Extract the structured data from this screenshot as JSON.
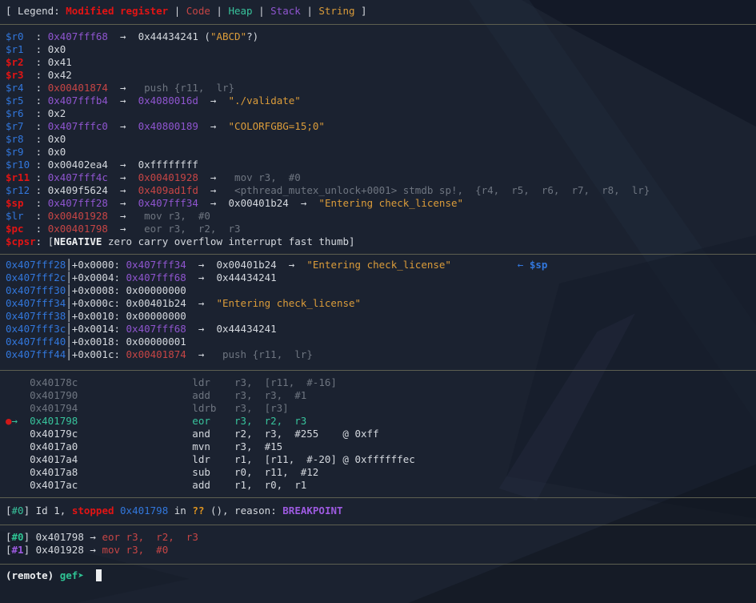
{
  "colors": {
    "background": "#1b2230",
    "text": "#d4d8de",
    "register_blue": "#3277dc",
    "modified_register_red": "#e21414",
    "code_red": "#c64545",
    "heap_green": "#38c39c",
    "stack_purple": "#8f55cf",
    "string_orange": "#db9c3a",
    "dim_gray": "#6e7580",
    "separator": "#5d5f50",
    "cursor": "#eceef0"
  },
  "terminal": {
    "blocks": [
      {
        "kind": "lines",
        "name": "legend",
        "lines": [
          [
            {
              "t": "[ Legend: ",
              "c": "w"
            },
            {
              "t": "Modified register",
              "c": "rb",
              "n": "legend-modified-register"
            },
            {
              "t": " | ",
              "c": "w"
            },
            {
              "t": "Code",
              "c": "r",
              "n": "legend-code"
            },
            {
              "t": " | ",
              "c": "w"
            },
            {
              "t": "Heap",
              "c": "t",
              "n": "legend-heap"
            },
            {
              "t": " | ",
              "c": "w"
            },
            {
              "t": "Stack",
              "c": "p",
              "n": "legend-stack"
            },
            {
              "t": " | ",
              "c": "w"
            },
            {
              "t": "String",
              "c": "o",
              "n": "legend-string"
            },
            {
              "t": " ]",
              "c": "w"
            }
          ]
        ]
      },
      {
        "kind": "sep"
      },
      {
        "kind": "lines",
        "name": "registers",
        "lines": [
          [
            {
              "t": "$r0  ",
              "c": "b",
              "n": "register-name"
            },
            {
              "t": ": ",
              "c": "w"
            },
            {
              "t": "0x407fff68",
              "c": "p"
            },
            {
              "t": "  →  ",
              "c": "w"
            },
            {
              "t": "0x44434241",
              "c": "w"
            },
            {
              "t": " (",
              "c": "w"
            },
            {
              "t": "\"ABCD\"",
              "c": "o"
            },
            {
              "t": "?)",
              "c": "w"
            }
          ],
          [
            {
              "t": "$r1  ",
              "c": "b",
              "n": "register-name"
            },
            {
              "t": ": ",
              "c": "w"
            },
            {
              "t": "0x0",
              "c": "w"
            }
          ],
          [
            {
              "t": "$r2  ",
              "c": "rb",
              "n": "register-name"
            },
            {
              "t": ": ",
              "c": "w"
            },
            {
              "t": "0x41",
              "c": "w"
            }
          ],
          [
            {
              "t": "$r3  ",
              "c": "rb",
              "n": "register-name"
            },
            {
              "t": ": ",
              "c": "w"
            },
            {
              "t": "0x42",
              "c": "w"
            }
          ],
          [
            {
              "t": "$r4  ",
              "c": "b",
              "n": "register-name"
            },
            {
              "t": ": ",
              "c": "w"
            },
            {
              "t": "0x00401874",
              "c": "r"
            },
            {
              "t": "  →  ",
              "c": "w"
            },
            {
              "t": " push {r11,  lr}",
              "c": "g"
            }
          ],
          [
            {
              "t": "$r5  ",
              "c": "b",
              "n": "register-name"
            },
            {
              "t": ": ",
              "c": "w"
            },
            {
              "t": "0x407fffb4",
              "c": "p"
            },
            {
              "t": "  →  ",
              "c": "w"
            },
            {
              "t": "0x4080016d",
              "c": "p"
            },
            {
              "t": "  →  ",
              "c": "w"
            },
            {
              "t": "\"./validate\"",
              "c": "o"
            }
          ],
          [
            {
              "t": "$r6  ",
              "c": "b",
              "n": "register-name"
            },
            {
              "t": ": ",
              "c": "w"
            },
            {
              "t": "0x2",
              "c": "w"
            }
          ],
          [
            {
              "t": "$r7  ",
              "c": "b",
              "n": "register-name"
            },
            {
              "t": ": ",
              "c": "w"
            },
            {
              "t": "0x407fffc0",
              "c": "p"
            },
            {
              "t": "  →  ",
              "c": "w"
            },
            {
              "t": "0x40800189",
              "c": "p"
            },
            {
              "t": "  →  ",
              "c": "w"
            },
            {
              "t": "\"COLORFGBG=15;0\"",
              "c": "o"
            }
          ],
          [
            {
              "t": "$r8  ",
              "c": "b",
              "n": "register-name"
            },
            {
              "t": ": ",
              "c": "w"
            },
            {
              "t": "0x0",
              "c": "w"
            }
          ],
          [
            {
              "t": "$r9  ",
              "c": "b",
              "n": "register-name"
            },
            {
              "t": ": ",
              "c": "w"
            },
            {
              "t": "0x0",
              "c": "w"
            }
          ],
          [
            {
              "t": "$r10 ",
              "c": "b",
              "n": "register-name"
            },
            {
              "t": ": ",
              "c": "w"
            },
            {
              "t": "0x00402ea4",
              "c": "w"
            },
            {
              "t": "  →  ",
              "c": "w"
            },
            {
              "t": "0xffffffff",
              "c": "w"
            }
          ],
          [
            {
              "t": "$r11 ",
              "c": "rb",
              "n": "register-name"
            },
            {
              "t": ": ",
              "c": "w"
            },
            {
              "t": "0x407fff4c",
              "c": "p"
            },
            {
              "t": "  →  ",
              "c": "w"
            },
            {
              "t": "0x00401928",
              "c": "r"
            },
            {
              "t": "  →  ",
              "c": "w"
            },
            {
              "t": " mov r3,  #0",
              "c": "g"
            }
          ],
          [
            {
              "t": "$r12 ",
              "c": "b",
              "n": "register-name"
            },
            {
              "t": ": ",
              "c": "w"
            },
            {
              "t": "0x409f5624",
              "c": "w"
            },
            {
              "t": "  →  ",
              "c": "w"
            },
            {
              "t": "0x409ad1fd",
              "c": "r"
            },
            {
              "t": "  →  ",
              "c": "w"
            },
            {
              "t": " <pthread_mutex_unlock+0001> stmdb sp!,  {r4,  r5,  r6,  r7,  r8,  lr}",
              "c": "g"
            }
          ],
          [
            {
              "t": "$sp  ",
              "c": "rb",
              "n": "register-name"
            },
            {
              "t": ": ",
              "c": "w"
            },
            {
              "t": "0x407fff28",
              "c": "p"
            },
            {
              "t": "  →  ",
              "c": "w"
            },
            {
              "t": "0x407fff34",
              "c": "p"
            },
            {
              "t": "  →  ",
              "c": "w"
            },
            {
              "t": "0x00401b24",
              "c": "w"
            },
            {
              "t": "  →  ",
              "c": "w"
            },
            {
              "t": "\"Entering check_license\"",
              "c": "o"
            }
          ],
          [
            {
              "t": "$lr  ",
              "c": "b",
              "n": "register-name"
            },
            {
              "t": ": ",
              "c": "w"
            },
            {
              "t": "0x00401928",
              "c": "r"
            },
            {
              "t": "  →  ",
              "c": "w"
            },
            {
              "t": " mov r3,  #0",
              "c": "g"
            }
          ],
          [
            {
              "t": "$pc  ",
              "c": "rb",
              "n": "register-name"
            },
            {
              "t": ": ",
              "c": "w"
            },
            {
              "t": "0x00401798",
              "c": "r"
            },
            {
              "t": "  →  ",
              "c": "w"
            },
            {
              "t": " eor r3,  r2,  r3",
              "c": "g"
            }
          ],
          [
            {
              "t": "$cpsr",
              "c": "rb",
              "n": "register-name"
            },
            {
              "t": ": ",
              "c": "w"
            },
            {
              "t": "[",
              "c": "w"
            },
            {
              "t": "NEGATIVE",
              "c": "wb",
              "n": "flag-negative-set"
            },
            {
              "t": " zero carry overflow interrupt fast thumb]",
              "c": "w"
            }
          ]
        ]
      },
      {
        "kind": "sep"
      },
      {
        "kind": "lines",
        "name": "stack",
        "lines": [
          [
            {
              "t": "0x407fff28",
              "c": "b",
              "n": "stack-address"
            },
            {
              "t": "│",
              "c": "w"
            },
            {
              "t": "+0x0000: ",
              "c": "w"
            },
            {
              "t": "0x407fff34",
              "c": "p"
            },
            {
              "t": "  →  ",
              "c": "w"
            },
            {
              "t": "0x00401b24",
              "c": "w"
            },
            {
              "t": "  →  ",
              "c": "w"
            },
            {
              "t": "\"Entering check_license\"",
              "c": "o"
            },
            {
              "t": "           ",
              "c": "w"
            },
            {
              "t": "← ",
              "c": "b",
              "n": "sp-pointer-arrow"
            },
            {
              "t": "$sp",
              "c": "bb",
              "n": "sp-pointer-label"
            }
          ],
          [
            {
              "t": "0x407fff2c",
              "c": "b",
              "n": "stack-address"
            },
            {
              "t": "│",
              "c": "w"
            },
            {
              "t": "+0x0004: ",
              "c": "w"
            },
            {
              "t": "0x407fff68",
              "c": "p"
            },
            {
              "t": "  →  ",
              "c": "w"
            },
            {
              "t": "0x44434241",
              "c": "w"
            }
          ],
          [
            {
              "t": "0x407fff30",
              "c": "b",
              "n": "stack-address"
            },
            {
              "t": "│",
              "c": "w"
            },
            {
              "t": "+0x0008: ",
              "c": "w"
            },
            {
              "t": "0x00000000",
              "c": "w"
            }
          ],
          [
            {
              "t": "0x407fff34",
              "c": "b",
              "n": "stack-address"
            },
            {
              "t": "│",
              "c": "w"
            },
            {
              "t": "+0x000c: ",
              "c": "w"
            },
            {
              "t": "0x00401b24",
              "c": "w"
            },
            {
              "t": "  →  ",
              "c": "w"
            },
            {
              "t": "\"Entering check_license\"",
              "c": "o"
            }
          ],
          [
            {
              "t": "0x407fff38",
              "c": "b",
              "n": "stack-address"
            },
            {
              "t": "│",
              "c": "w"
            },
            {
              "t": "+0x0010: ",
              "c": "w"
            },
            {
              "t": "0x00000000",
              "c": "w"
            }
          ],
          [
            {
              "t": "0x407fff3c",
              "c": "b",
              "n": "stack-address"
            },
            {
              "t": "│",
              "c": "w"
            },
            {
              "t": "+0x0014: ",
              "c": "w"
            },
            {
              "t": "0x407fff68",
              "c": "p"
            },
            {
              "t": "  →  ",
              "c": "w"
            },
            {
              "t": "0x44434241",
              "c": "w"
            }
          ],
          [
            {
              "t": "0x407fff40",
              "c": "b",
              "n": "stack-address"
            },
            {
              "t": "│",
              "c": "w"
            },
            {
              "t": "+0x0018: ",
              "c": "w"
            },
            {
              "t": "0x00000001",
              "c": "w"
            }
          ],
          [
            {
              "t": "0x407fff44",
              "c": "b",
              "n": "stack-address"
            },
            {
              "t": "│",
              "c": "w"
            },
            {
              "t": "+0x001c: ",
              "c": "w"
            },
            {
              "t": "0x00401874",
              "c": "r"
            },
            {
              "t": "  →  ",
              "c": "w"
            },
            {
              "t": " push {r11,  lr}",
              "c": "g"
            }
          ]
        ]
      },
      {
        "kind": "sep"
      },
      {
        "kind": "lines",
        "name": "code",
        "lines": [
          [
            {
              "t": "    0x40178c                   ldr    r3,  [r11,  #-16]",
              "c": "g"
            }
          ],
          [
            {
              "t": "    0x401790                   add    r3,  r3,  #1",
              "c": "g"
            }
          ],
          [
            {
              "t": "    0x401794                   ldrb   r3,  [r3]",
              "c": "g"
            }
          ],
          [
            {
              "t": "●",
              "c": "rdot",
              "n": "breakpoint-dot"
            },
            {
              "t": "→  ",
              "c": "t",
              "n": "current-instruction-arrow"
            },
            {
              "t": "0x401798                   eor    r3,  r2,  r3",
              "c": "t",
              "n": "current-instruction"
            }
          ],
          [
            {
              "t": "    0x40179c                   and    r2,  r3,  #255    @ 0xff",
              "c": "w"
            }
          ],
          [
            {
              "t": "    0x4017a0                   mvn    r3,  #15",
              "c": "w"
            }
          ],
          [
            {
              "t": "    0x4017a4                   ldr    r1,  [r11,  #-20] @ 0xffffffec",
              "c": "w"
            }
          ],
          [
            {
              "t": "    0x4017a8                   sub    r0,  r11,  #12",
              "c": "w"
            }
          ],
          [
            {
              "t": "    0x4017ac                   add    r1,  r0,  r1",
              "c": "w"
            }
          ]
        ]
      },
      {
        "kind": "sep"
      },
      {
        "kind": "lines",
        "name": "threads",
        "lines": [
          [
            {
              "t": "[",
              "c": "w"
            },
            {
              "t": "#0",
              "c": "t",
              "n": "thread-id"
            },
            {
              "t": "] Id 1, ",
              "c": "w"
            },
            {
              "t": "stopped",
              "c": "rb",
              "n": "thread-status"
            },
            {
              "t": " ",
              "c": "w"
            },
            {
              "t": "0x401798",
              "c": "b"
            },
            {
              "t": " in ",
              "c": "w"
            },
            {
              "t": "??",
              "c": "ob"
            },
            {
              "t": " (), reason: ",
              "c": "w"
            },
            {
              "t": "BREAKPOINT",
              "c": "pb",
              "n": "stop-reason"
            }
          ]
        ]
      },
      {
        "kind": "sep"
      },
      {
        "kind": "lines",
        "name": "trace",
        "lines": [
          [
            {
              "t": "[",
              "c": "w"
            },
            {
              "t": "#0",
              "c": "tb",
              "n": "frame-id"
            },
            {
              "t": "] ",
              "c": "w"
            },
            {
              "t": "0x401798",
              "c": "w"
            },
            {
              "t": " → ",
              "c": "w"
            },
            {
              "t": "eor r3,  r2,  r3",
              "c": "r"
            }
          ],
          [
            {
              "t": "[",
              "c": "w"
            },
            {
              "t": "#1",
              "c": "pb",
              "n": "frame-id"
            },
            {
              "t": "] ",
              "c": "w"
            },
            {
              "t": "0x401928",
              "c": "w"
            },
            {
              "t": " → ",
              "c": "w"
            },
            {
              "t": "mov r3,  #0",
              "c": "r"
            }
          ]
        ]
      },
      {
        "kind": "sep"
      },
      {
        "kind": "lines",
        "name": "prompt",
        "lines": [
          [
            {
              "t": "(remote)",
              "c": "wb",
              "n": "remote-indicator"
            },
            {
              "t": " ",
              "c": "w"
            },
            {
              "t": "gef➤",
              "c": "tb",
              "n": "gef-prompt"
            },
            {
              "t": "  ",
              "c": "w"
            },
            {
              "t": " ",
              "c": "cur",
              "n": "cursor"
            }
          ]
        ]
      }
    ]
  }
}
